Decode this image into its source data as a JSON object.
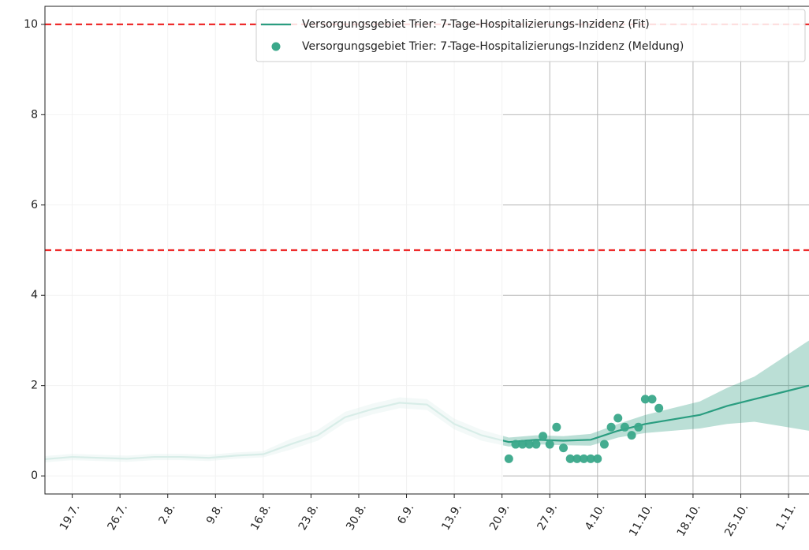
{
  "chart_data": {
    "type": "line",
    "x": [
      196,
      200,
      204,
      208,
      212,
      216,
      220,
      224,
      228,
      232,
      236,
      240,
      244,
      248,
      252,
      256,
      260,
      264,
      268,
      272,
      276,
      280,
      284,
      288,
      292,
      296,
      300,
      304,
      308
    ],
    "series": [
      {
        "name": "Versorgungsgebiet Trier: 7-Tage-Hospitalizierungs-Inzidenz (Fit)",
        "type": "line",
        "color": "#2a9d80",
        "values": [
          0.37,
          0.42,
          0.4,
          0.38,
          0.42,
          0.42,
          0.4,
          0.45,
          0.48,
          0.7,
          0.9,
          1.3,
          1.48,
          1.62,
          1.58,
          1.15,
          0.9,
          0.75,
          0.8,
          0.78,
          0.8,
          1.0,
          1.15,
          1.25,
          1.35,
          1.55,
          1.7,
          1.85,
          2.0
        ],
        "band_lower": [
          0.3,
          0.35,
          0.33,
          0.31,
          0.35,
          0.35,
          0.33,
          0.38,
          0.41,
          0.58,
          0.78,
          1.18,
          1.36,
          1.5,
          1.46,
          1.03,
          0.78,
          0.65,
          0.7,
          0.68,
          0.67,
          0.85,
          0.95,
          1.0,
          1.05,
          1.15,
          1.2,
          1.1,
          1.0
        ],
        "band_upper": [
          0.44,
          0.49,
          0.47,
          0.45,
          0.49,
          0.49,
          0.47,
          0.52,
          0.55,
          0.82,
          1.02,
          1.42,
          1.6,
          1.74,
          1.7,
          1.27,
          1.02,
          0.85,
          0.9,
          0.88,
          0.93,
          1.15,
          1.35,
          1.5,
          1.65,
          1.95,
          2.2,
          2.6,
          3.0
        ]
      },
      {
        "name": "Versorgungsgebiet Trier: 7-Tage-Hospitalizierungs-Inzidenz (Meldung)",
        "type": "scatter",
        "color": "#3aa88a",
        "x": [
          264,
          265,
          266,
          267,
          268,
          269,
          270,
          271,
          272,
          273,
          274,
          275,
          276,
          277,
          278,
          279,
          280,
          281,
          282,
          283,
          284,
          285,
          286
        ],
        "values": [
          0.38,
          0.7,
          0.7,
          0.7,
          0.7,
          0.88,
          0.7,
          1.08,
          0.62,
          0.38,
          0.38,
          0.38,
          0.38,
          0.38,
          0.7,
          1.08,
          1.28,
          1.08,
          0.9,
          1.08,
          1.7,
          1.7,
          1.5
        ]
      }
    ],
    "hlines": [
      {
        "value": 5,
        "color": "#ee2c2c"
      },
      {
        "value": 10,
        "color": "#ee2c2c"
      }
    ],
    "xlim": [
      196,
      308
    ],
    "xticks": [
      {
        "value": 200,
        "label": "19.7."
      },
      {
        "value": 207,
        "label": "26.7."
      },
      {
        "value": 214,
        "label": "2.8."
      },
      {
        "value": 221,
        "label": "9.8."
      },
      {
        "value": 228,
        "label": "16.8."
      },
      {
        "value": 235,
        "label": "23.8."
      },
      {
        "value": 242,
        "label": "30.8."
      },
      {
        "value": 249,
        "label": "6.9."
      },
      {
        "value": 256,
        "label": "13.9."
      },
      {
        "value": 263,
        "label": "20.9."
      },
      {
        "value": 270,
        "label": "27.9."
      },
      {
        "value": 277,
        "label": "4.10."
      },
      {
        "value": 284,
        "label": "11.10."
      },
      {
        "value": 291,
        "label": "18.10."
      },
      {
        "value": 298,
        "label": "25.10."
      },
      {
        "value": 305,
        "label": "1.11."
      }
    ],
    "ylim": [
      -0.4,
      10.4
    ],
    "yticks": [
      0,
      2,
      4,
      6,
      8,
      10
    ],
    "grid": true,
    "legend": "upper right"
  }
}
